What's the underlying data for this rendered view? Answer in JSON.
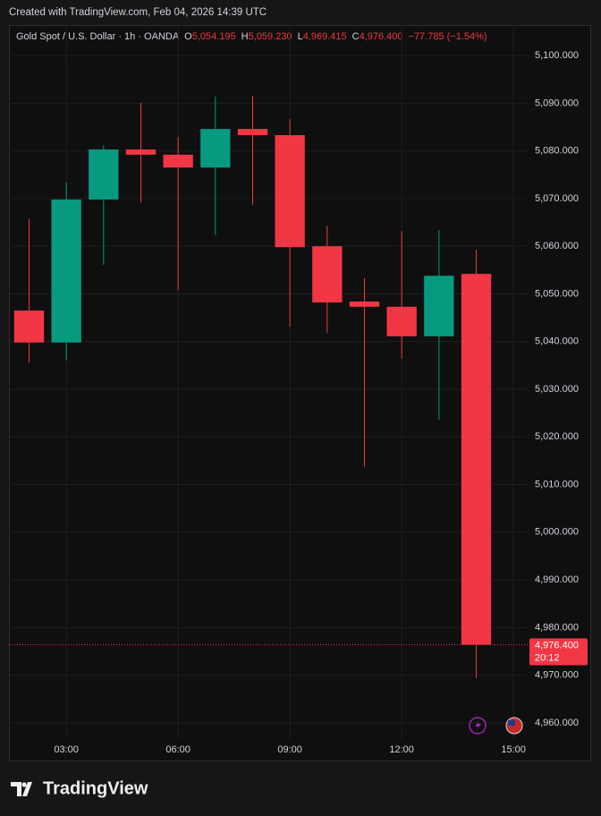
{
  "caption": "Created with TradingView.com, Feb 04, 2026 14:39 UTC",
  "chart_data": {
    "type": "candlestick",
    "legend": {
      "symbol": "Gold Spot / U.S. Dollar · 1h · OANDA",
      "fields": [
        {
          "key": "O",
          "value": "5,054.195"
        },
        {
          "key": "H",
          "value": "5,059.230"
        },
        {
          "key": "L",
          "value": "4,969.415"
        },
        {
          "key": "C",
          "value": "4,976.400"
        }
      ],
      "change": "−77.785 (−1.54%)"
    },
    "x": [
      2,
      3,
      4,
      5,
      6,
      7,
      8,
      9,
      10,
      11,
      12,
      13,
      14
    ],
    "series": [
      {
        "open": [
          5046.5,
          5039.8,
          5069.8,
          5080.3,
          5079.2,
          5076.5,
          5084.6,
          5083.3,
          5060.0,
          5048.4,
          5047.3,
          5041.1,
          5054.195
        ],
        "high": [
          5065.7,
          5073.4,
          5081.2,
          5090.1,
          5082.9,
          5091.4,
          5091.6,
          5086.7,
          5064.3,
          5053.3,
          5063.2,
          5063.4,
          5059.23
        ],
        "low": [
          5035.6,
          5036.0,
          5056.1,
          5069.2,
          5050.8,
          5062.3,
          5068.7,
          5043.1,
          5041.8,
          5013.7,
          5036.4,
          5023.6,
          4969.415
        ],
        "close": [
          5039.8,
          5069.8,
          5080.3,
          5079.2,
          5076.5,
          5084.6,
          5083.3,
          5059.8,
          5048.2,
          5047.3,
          5041.1,
          5053.8,
          4976.4
        ]
      }
    ],
    "colors": {
      "up": "#089981",
      "down": "#f23645"
    },
    "xlim": [
      1.46,
      15.38
    ],
    "xticks": [
      {
        "value": 3,
        "label": "03:00"
      },
      {
        "value": 6,
        "label": "06:00"
      },
      {
        "value": 9,
        "label": "09:00"
      },
      {
        "value": 12,
        "label": "12:00"
      },
      {
        "value": 15,
        "label": "15:00"
      }
    ],
    "ylim": [
      4956.6,
      5106.4
    ],
    "yticks": [
      {
        "value": 4960,
        "label": "4,960.000"
      },
      {
        "value": 4970,
        "label": "4,970.000"
      },
      {
        "value": 4980,
        "label": "4,980.000"
      },
      {
        "value": 4990,
        "label": "4,990.000"
      },
      {
        "value": 5000,
        "label": "5,000.000"
      },
      {
        "value": 5010,
        "label": "5,010.000"
      },
      {
        "value": 5020,
        "label": "5,020.000"
      },
      {
        "value": 5030,
        "label": "5,030.000"
      },
      {
        "value": 5040,
        "label": "5,040.000"
      },
      {
        "value": 5050,
        "label": "5,050.000"
      },
      {
        "value": 5060,
        "label": "5,060.000"
      },
      {
        "value": 5070,
        "label": "5,070.000"
      },
      {
        "value": 5080,
        "label": "5,080.000"
      },
      {
        "value": 5090,
        "label": "5,090.000"
      },
      {
        "value": 5100,
        "label": "5,100.000"
      }
    ],
    "last_price": {
      "value": 4976.4,
      "label": "4,976.400",
      "countdown": "20:12"
    },
    "grid": true
  },
  "footer": {
    "brand": "TradingView"
  }
}
